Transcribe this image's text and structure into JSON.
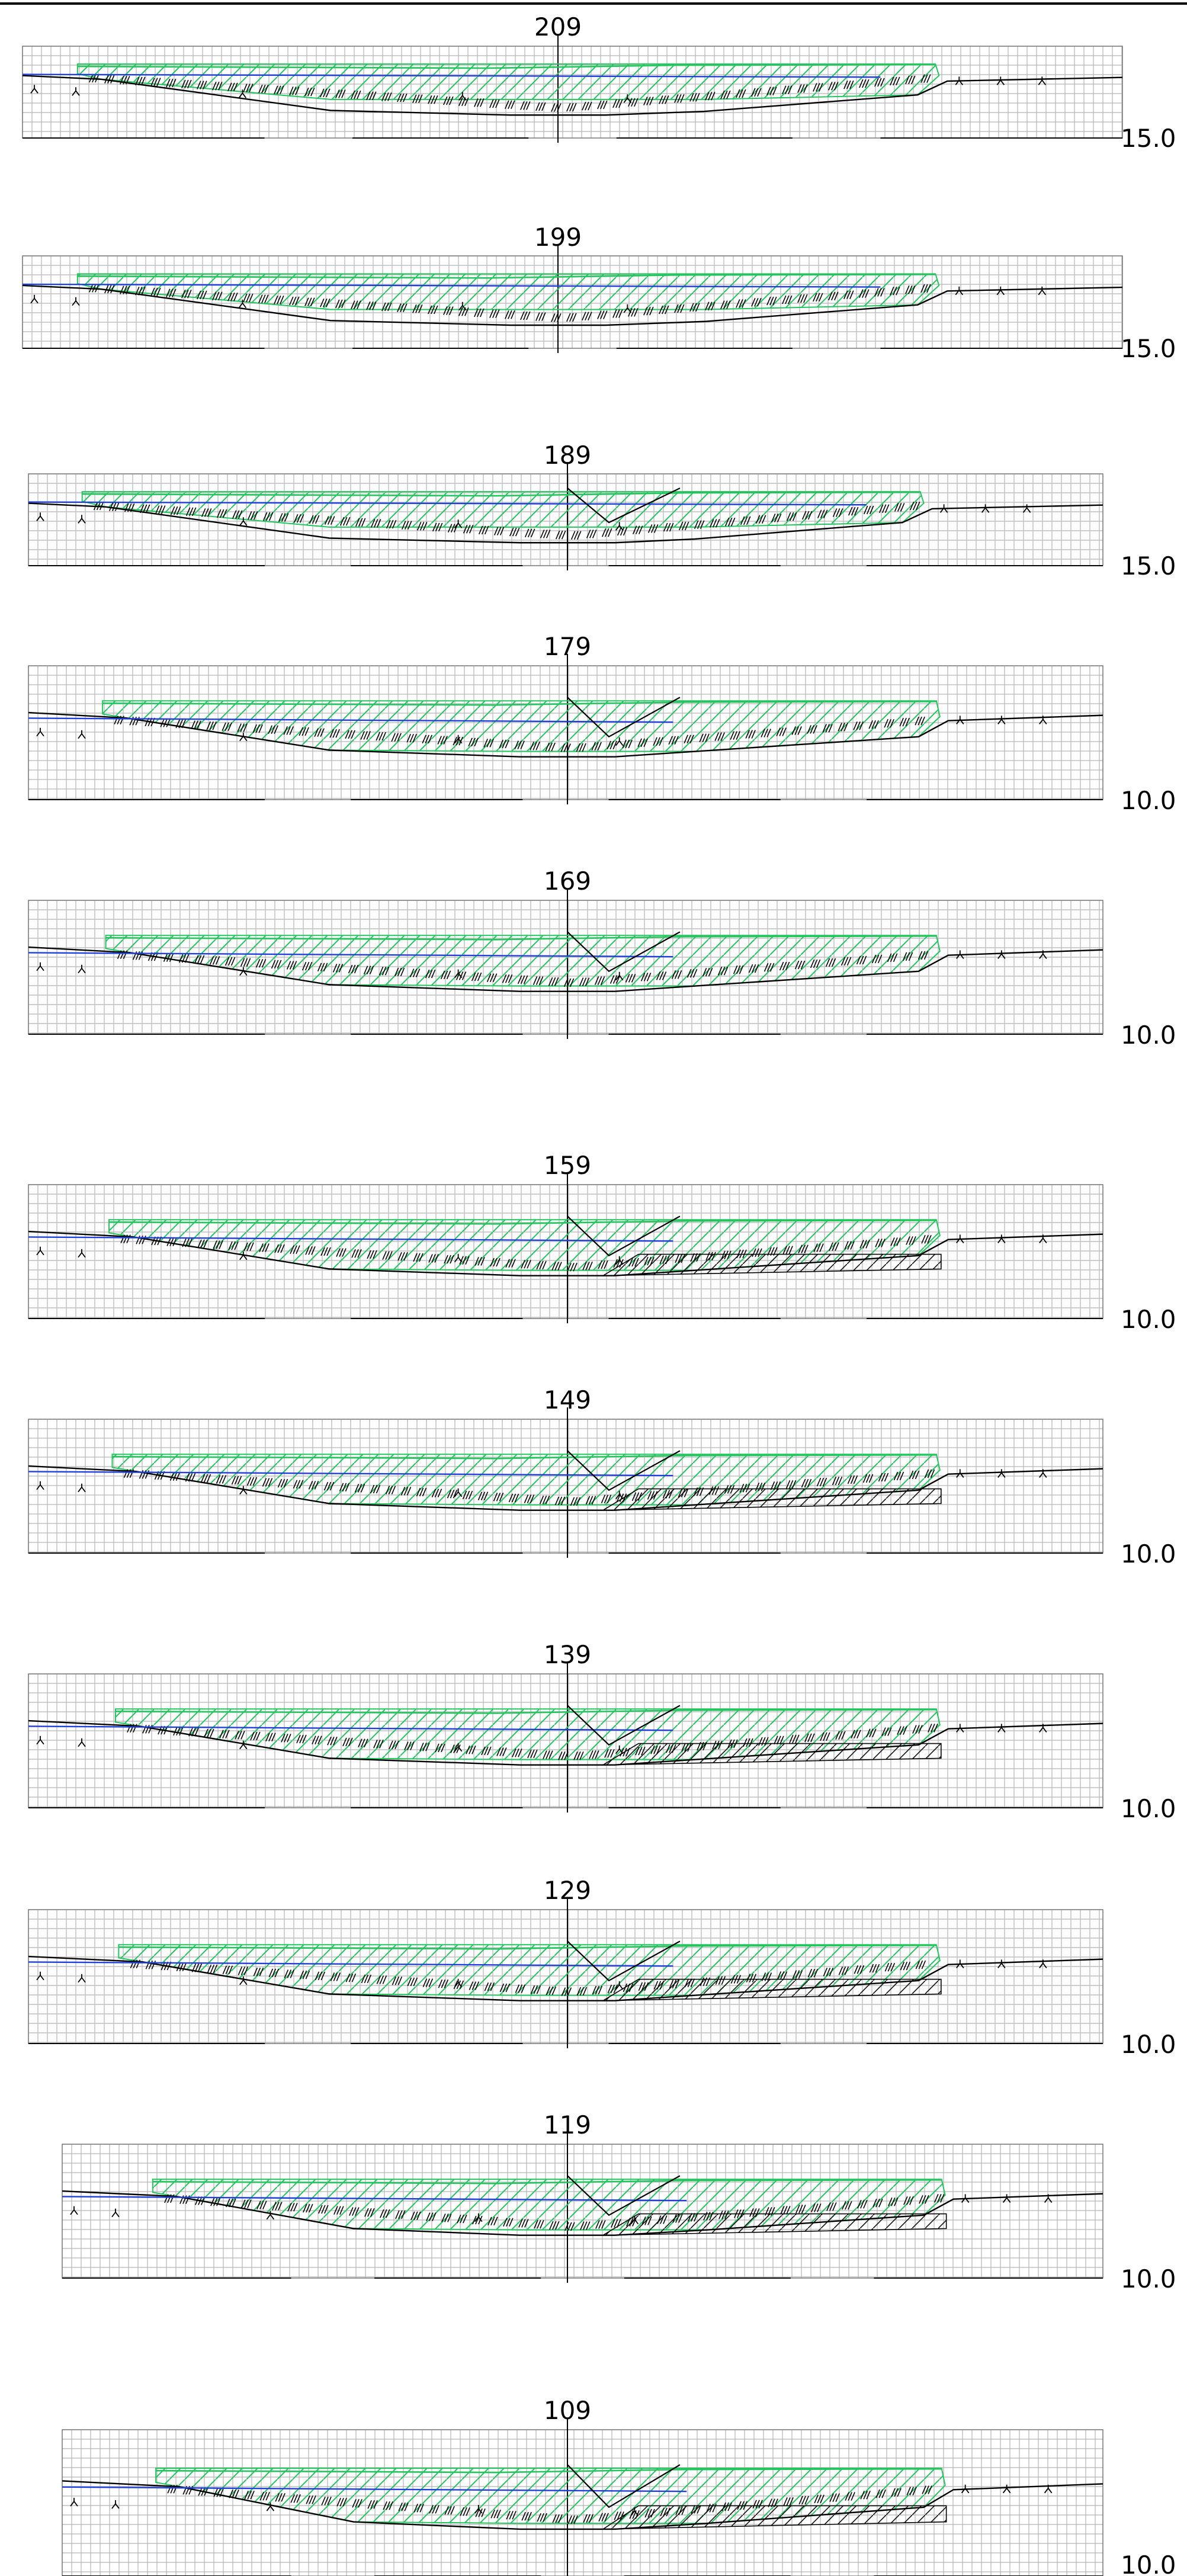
{
  "drawing": {
    "sections": [
      {
        "title": "209",
        "datum": "15.0"
      },
      {
        "title": "199",
        "datum": "15.0"
      },
      {
        "title": "189",
        "datum": "15.0"
      },
      {
        "title": "179",
        "datum": "10.0"
      },
      {
        "title": "169",
        "datum": "10.0"
      },
      {
        "title": "159",
        "datum": "10.0"
      },
      {
        "title": "149",
        "datum": "10.0"
      },
      {
        "title": "139",
        "datum": "10.0"
      },
      {
        "title": "129",
        "datum": "10.0"
      },
      {
        "title": "119",
        "datum": "10.0"
      },
      {
        "title": "109",
        "datum": "10.0"
      }
    ]
  },
  "colors": {
    "grid": "#b4b4b4",
    "ground_line": "#000000",
    "water_line": "#1f3fd6",
    "fill_hatch": "#22c55e",
    "cut_hatch": "#000000"
  }
}
